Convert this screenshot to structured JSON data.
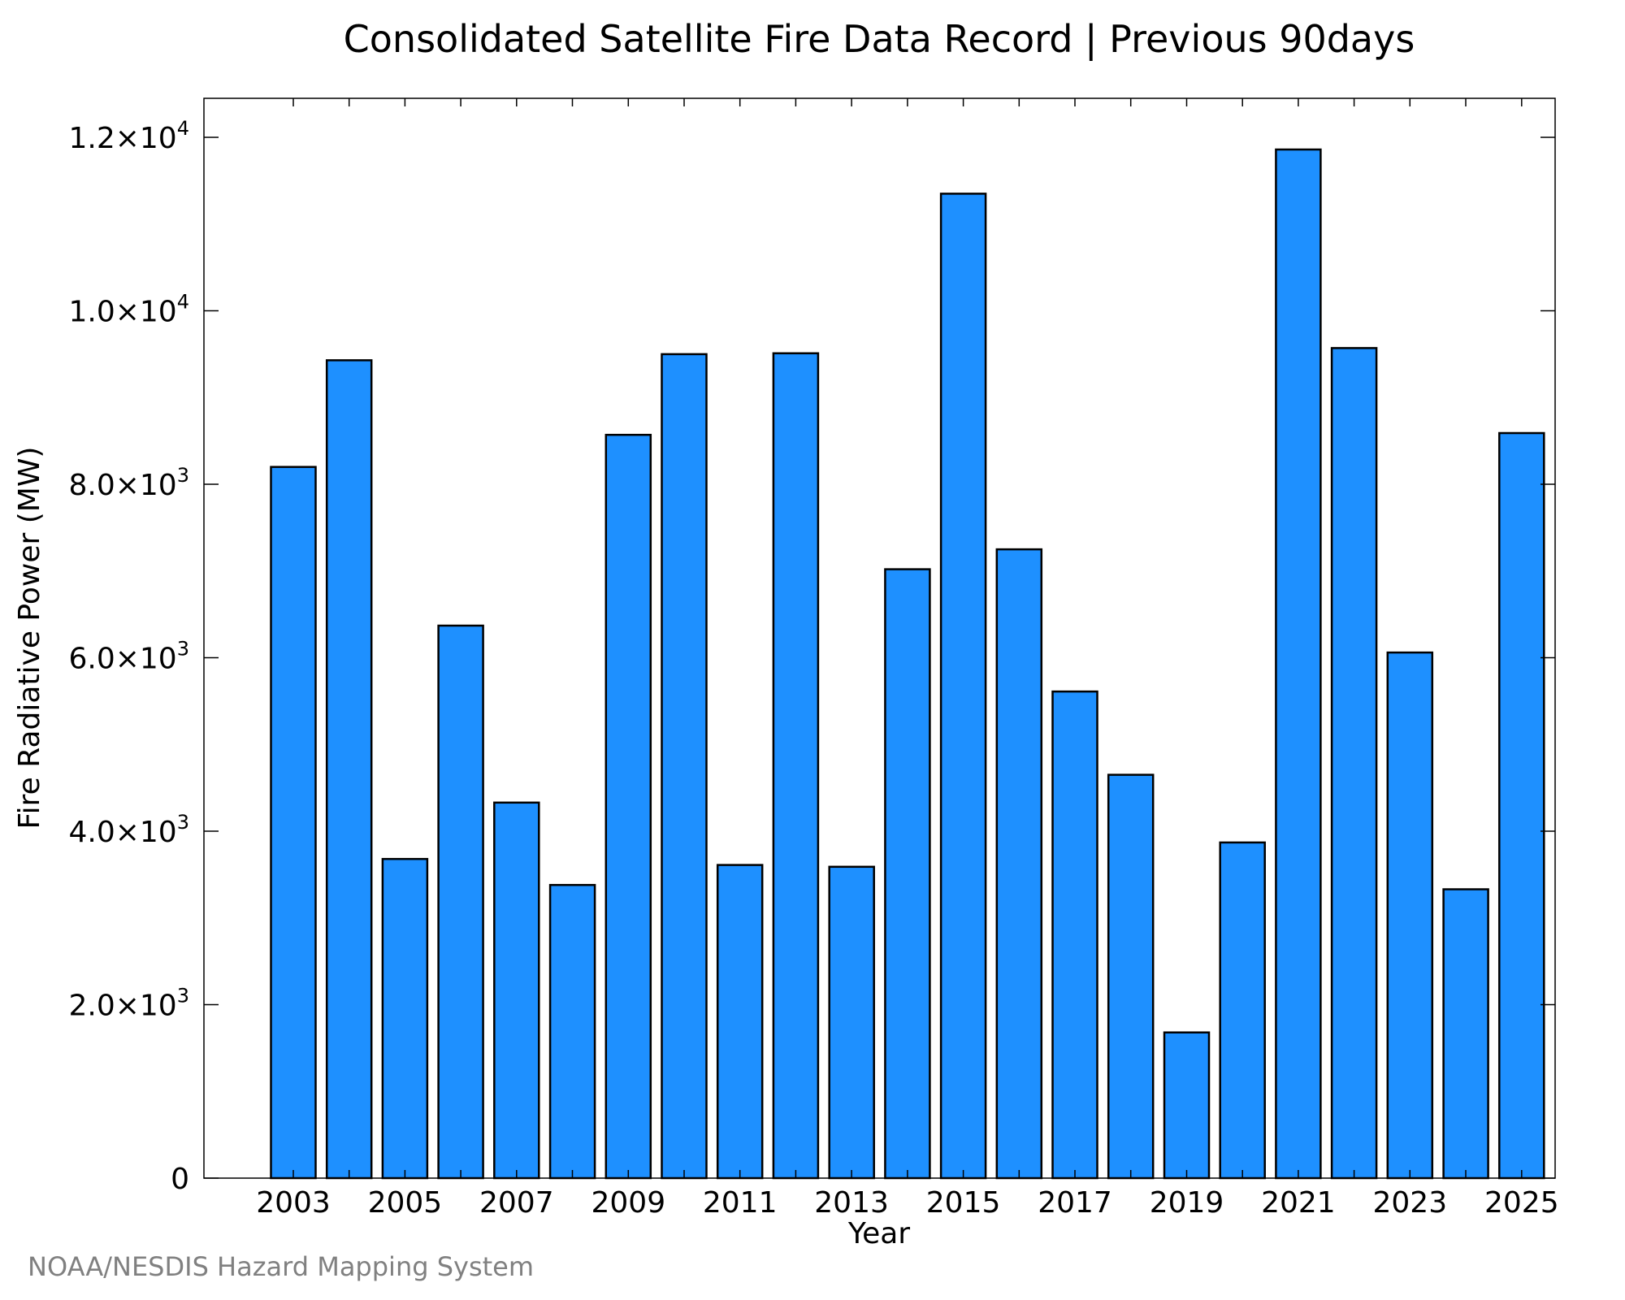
{
  "chart_data": {
    "type": "bar",
    "title": "Consolidated Satellite Fire Data Record | Previous 90days",
    "xlabel": "Year",
    "ylabel": "Fire Radiative Power (MW)",
    "categories": [
      2003,
      2004,
      2005,
      2006,
      2007,
      2008,
      2009,
      2010,
      2011,
      2012,
      2013,
      2014,
      2015,
      2016,
      2017,
      2018,
      2019,
      2020,
      2021,
      2022,
      2023,
      2024,
      2025
    ],
    "values": [
      8200,
      9430,
      3680,
      6370,
      4330,
      3380,
      8570,
      9500,
      3610,
      9510,
      3590,
      7020,
      11350,
      7250,
      5610,
      4650,
      1680,
      3870,
      11860,
      9570,
      6060,
      3330,
      8590
    ],
    "x_tick_labels": [
      "2003",
      "2005",
      "2007",
      "2009",
      "2011",
      "2013",
      "2015",
      "2017",
      "2019",
      "2021",
      "2023",
      "2025"
    ],
    "y_ticks": [
      {
        "value": 0,
        "mantissa": "0",
        "exponent": ""
      },
      {
        "value": 2000,
        "mantissa": "2.0×10",
        "exponent": "3"
      },
      {
        "value": 4000,
        "mantissa": "4.0×10",
        "exponent": "3"
      },
      {
        "value": 6000,
        "mantissa": "6.0×10",
        "exponent": "3"
      },
      {
        "value": 8000,
        "mantissa": "8.0×10",
        "exponent": "3"
      },
      {
        "value": 10000,
        "mantissa": "1.0×10",
        "exponent": "4"
      },
      {
        "value": 12000,
        "mantissa": "1.2×10",
        "exponent": "4"
      }
    ],
    "ylim": [
      0,
      12450
    ],
    "xlim": [
      2001.4,
      2025.6
    ],
    "bar_color": "#1e90ff",
    "bar_edge_color": "#000000",
    "grid": false,
    "legend": "none"
  },
  "credit": "NOAA/NESDIS Hazard Mapping System"
}
